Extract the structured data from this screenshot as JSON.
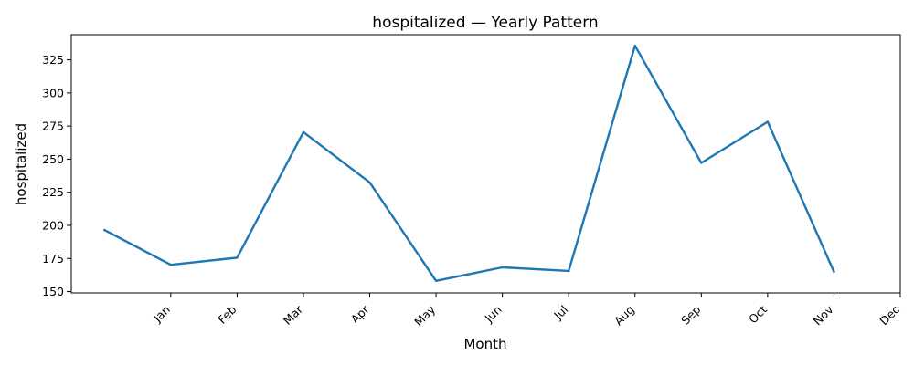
{
  "chart_data": {
    "type": "line",
    "title": "hospitalized — Yearly Pattern",
    "xlabel": "Month",
    "ylabel": "hospitalized",
    "x_tick_labels": [
      "Jan",
      "Feb",
      "Mar",
      "Apr",
      "May",
      "Jun",
      "Jul",
      "Aug",
      "Sep",
      "Oct",
      "Nov",
      "Dec"
    ],
    "y_ticks": [
      150,
      175,
      200,
      225,
      250,
      275,
      300,
      325
    ],
    "x_range": [
      -0.5,
      12
    ],
    "ylim": [
      149,
      344
    ],
    "grid": false,
    "legend": "none",
    "series": [
      {
        "color": "#1f77b4",
        "points": [
          {
            "x": 0,
            "y": 196.5
          },
          {
            "x": 1,
            "y": 170.2
          },
          {
            "x": 2,
            "y": 175.6
          },
          {
            "x": 3,
            "y": 270.4
          },
          {
            "x": 4,
            "y": 232.4
          },
          {
            "x": 5,
            "y": 158.1
          },
          {
            "x": 6,
            "y": 168.3
          },
          {
            "x": 7,
            "y": 165.6
          },
          {
            "x": 8,
            "y": 335.7
          },
          {
            "x": 9,
            "y": 247.2
          },
          {
            "x": 10,
            "y": 278.2
          },
          {
            "x": 11,
            "y": 164.9
          }
        ]
      }
    ]
  }
}
